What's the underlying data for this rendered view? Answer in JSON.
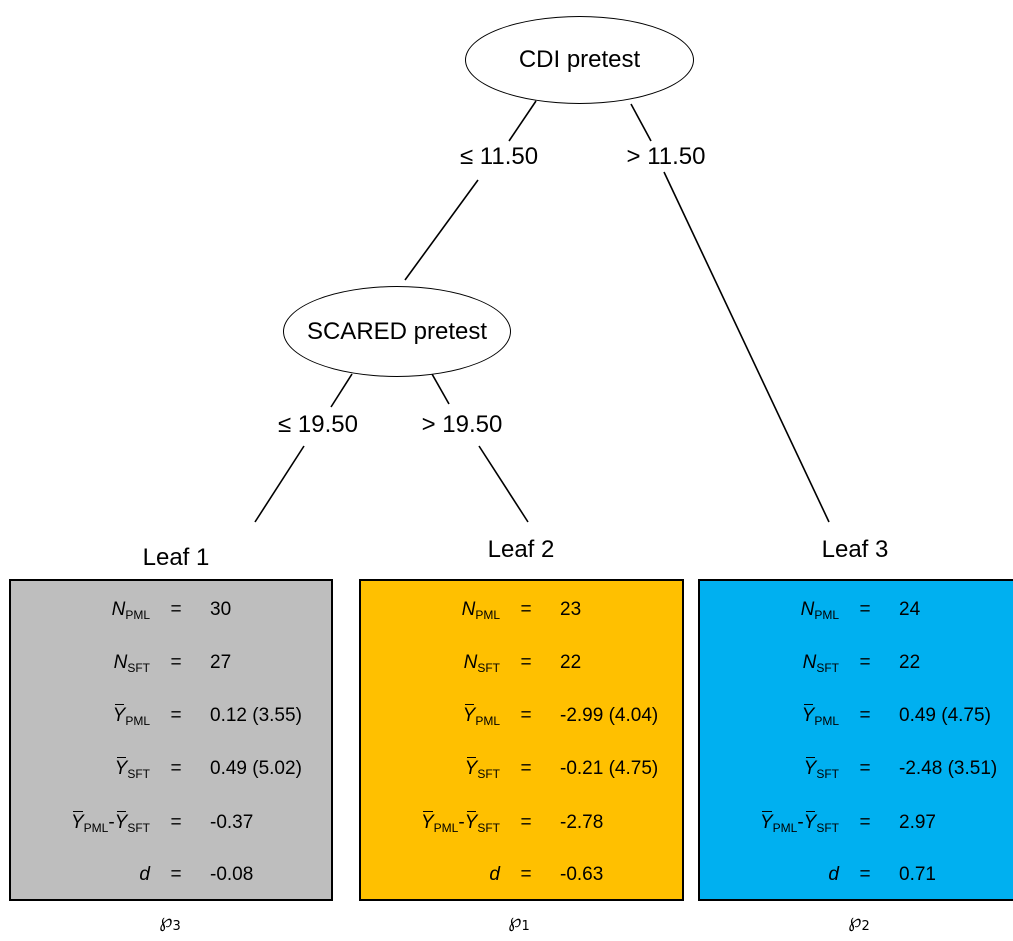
{
  "root": {
    "label": "CDI pretest"
  },
  "split_root": {
    "left": "≤ 11.50",
    "right": "> 11.50"
  },
  "child": {
    "label": "SCARED pretest"
  },
  "split_child": {
    "left": "≤ 19.50",
    "right": "> 19.50"
  },
  "leaves": [
    {
      "title": "Leaf 1",
      "color": "#bebebe",
      "n_pml": "30",
      "n_sft": "27",
      "y_pml": "0.12 (3.55)",
      "y_sft": "0.49 (5.02)",
      "diff": "-0.37",
      "d": "-0.08",
      "partition_symbol": "℘",
      "partition_index": "3"
    },
    {
      "title": "Leaf 2",
      "color": "#ffc000",
      "n_pml": "23",
      "n_sft": "22",
      "y_pml": "-2.99 (4.04)",
      "y_sft": "-0.21 (4.75)",
      "diff": "-2.78",
      "d": "-0.63",
      "partition_symbol": "℘",
      "partition_index": "1"
    },
    {
      "title": "Leaf 3",
      "color": "#00b0f0",
      "n_pml": "24",
      "n_sft": "22",
      "y_pml": "0.49 (4.75)",
      "y_sft": "-2.48 (3.51)",
      "diff": "2.97",
      "d": "0.71",
      "partition_symbol": "℘",
      "partition_index": "2"
    }
  ],
  "labels": {
    "n": "N",
    "y": "Y",
    "d": "d",
    "eq": "=",
    "dash": "-",
    "sub_pml": "PML",
    "sub_sft": "SFT"
  }
}
